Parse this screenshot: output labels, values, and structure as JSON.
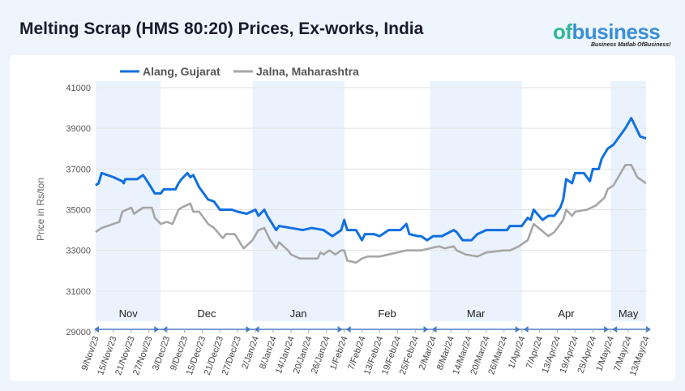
{
  "title": "Melting Scrap (HMS 80:20) Prices, Ex-works, India",
  "logo": {
    "brand_a": "of",
    "brand_b": "business",
    "tagline": "Business Matlab OfBusiness!"
  },
  "colors": {
    "alang": "#1170e0",
    "jalna": "#a6a6a6",
    "band": "#eaf3fd"
  },
  "chart_data": {
    "type": "line",
    "title": "Melting Scrap (HMS 80:20) Prices, Ex-works, India",
    "xlabel": "",
    "ylabel": "Price in Rs/ton",
    "ylim": [
      29000,
      41000
    ],
    "yticks": [
      "29000",
      "31000",
      "33000",
      "35000",
      "37000",
      "39000",
      "41000"
    ],
    "x_unit": "days since 9/Nov/23",
    "xlim": [
      0,
      186
    ],
    "xticks": [
      "9/Nov/23",
      "15/Nov/23",
      "21/Nov/23",
      "27/Nov/23",
      "3/Dec/23",
      "9/Dec/23",
      "15/Dec/23",
      "21/Dec/23",
      "27/Dec/23",
      "2/Jan/24",
      "8/Jan/24",
      "14/Jan/24",
      "20/Jan/24",
      "26/Jan/24",
      "1/Feb/24",
      "7/Feb/24",
      "13/Feb/24",
      "19/Feb/24",
      "25/Feb/24",
      "2/Mar/24",
      "8/Mar/24",
      "14/Mar/24",
      "20/Mar/24",
      "26/Mar/24",
      "1/Apr/24",
      "7/Apr/24",
      "13/Apr/24",
      "19/Apr/24",
      "25/Apr/24",
      "1/May/24",
      "7/May/24",
      "13/May/24"
    ],
    "months": [
      {
        "label": "Nov",
        "start": 0,
        "end": 22,
        "shaded": true
      },
      {
        "label": "Dec",
        "start": 22,
        "end": 53,
        "shaded": false
      },
      {
        "label": "Jan",
        "start": 53,
        "end": 84,
        "shaded": true
      },
      {
        "label": "Feb",
        "start": 84,
        "end": 113,
        "shaded": false
      },
      {
        "label": "Mar",
        "start": 113,
        "end": 144,
        "shaded": true
      },
      {
        "label": "Apr",
        "start": 144,
        "end": 174,
        "shaded": false
      },
      {
        "label": "May",
        "start": 174,
        "end": 186,
        "shaded": true
      }
    ],
    "legend": "top-left",
    "series": [
      {
        "name": "Alang, Gujarat",
        "points": [
          [
            0,
            36200
          ],
          [
            1,
            36300
          ],
          [
            2,
            36800
          ],
          [
            6,
            36600
          ],
          [
            9,
            36400
          ],
          [
            9.5,
            36300
          ],
          [
            10,
            36500
          ],
          [
            14,
            36500
          ],
          [
            16,
            36700
          ],
          [
            17,
            36500
          ],
          [
            20,
            35800
          ],
          [
            22,
            35800
          ],
          [
            23,
            36000
          ],
          [
            27,
            36000
          ],
          [
            28,
            36300
          ],
          [
            29,
            36500
          ],
          [
            31,
            36800
          ],
          [
            32,
            36600
          ],
          [
            33,
            36700
          ],
          [
            35,
            36100
          ],
          [
            38,
            35500
          ],
          [
            40,
            35400
          ],
          [
            42,
            35000
          ],
          [
            46,
            35000
          ],
          [
            48,
            34900
          ],
          [
            51,
            34800
          ],
          [
            54,
            35000
          ],
          [
            55,
            34700
          ],
          [
            57,
            35000
          ],
          [
            58,
            34700
          ],
          [
            61,
            34000
          ],
          [
            62,
            34200
          ],
          [
            66,
            34100
          ],
          [
            70,
            34000
          ],
          [
            73,
            34100
          ],
          [
            77,
            34000
          ],
          [
            79,
            33800
          ],
          [
            80,
            33700
          ],
          [
            83,
            34000
          ],
          [
            84,
            34500
          ],
          [
            85,
            34000
          ],
          [
            88,
            34000
          ],
          [
            90,
            33500
          ],
          [
            91,
            33800
          ],
          [
            94,
            33800
          ],
          [
            96,
            33700
          ],
          [
            99,
            34000
          ],
          [
            103,
            34000
          ],
          [
            105,
            34300
          ],
          [
            106,
            33800
          ],
          [
            109,
            33700
          ],
          [
            110,
            33700
          ],
          [
            112,
            33500
          ],
          [
            114,
            33700
          ],
          [
            117,
            33700
          ],
          [
            121,
            34000
          ],
          [
            122,
            33900
          ],
          [
            124,
            33500
          ],
          [
            127,
            33500
          ],
          [
            129,
            33800
          ],
          [
            132,
            34000
          ],
          [
            139,
            34000
          ],
          [
            140,
            34200
          ],
          [
            144,
            34200
          ],
          [
            146,
            34600
          ],
          [
            147,
            34500
          ],
          [
            148,
            35000
          ],
          [
            151,
            34500
          ],
          [
            153,
            34700
          ],
          [
            155,
            34700
          ],
          [
            157,
            35100
          ],
          [
            158,
            35500
          ],
          [
            159,
            36500
          ],
          [
            161,
            36300
          ],
          [
            162,
            36800
          ],
          [
            165,
            36800
          ],
          [
            166,
            36600
          ],
          [
            167,
            36400
          ],
          [
            168,
            37000
          ],
          [
            170,
            37000
          ],
          [
            171,
            37500
          ],
          [
            173,
            38000
          ],
          [
            175,
            38200
          ],
          [
            176,
            38400
          ],
          [
            177,
            38600
          ],
          [
            179,
            39000
          ],
          [
            181,
            39500
          ],
          [
            182,
            39200
          ],
          [
            184,
            38600
          ],
          [
            186,
            38500
          ]
        ]
      },
      {
        "name": "Jalna, Maharashtra",
        "points": [
          [
            0,
            33900
          ],
          [
            2,
            34100
          ],
          [
            6,
            34300
          ],
          [
            8,
            34400
          ],
          [
            9,
            34900
          ],
          [
            12,
            35100
          ],
          [
            13,
            34800
          ],
          [
            14,
            34900
          ],
          [
            16,
            35100
          ],
          [
            19,
            35100
          ],
          [
            20,
            34600
          ],
          [
            22,
            34300
          ],
          [
            24,
            34400
          ],
          [
            26,
            34300
          ],
          [
            28,
            35000
          ],
          [
            29,
            35100
          ],
          [
            32,
            35300
          ],
          [
            33,
            34900
          ],
          [
            35,
            34900
          ],
          [
            38,
            34300
          ],
          [
            40,
            34100
          ],
          [
            43,
            33600
          ],
          [
            44,
            33800
          ],
          [
            47,
            33800
          ],
          [
            50,
            33100
          ],
          [
            53,
            33500
          ],
          [
            55,
            34000
          ],
          [
            57,
            34100
          ],
          [
            59,
            33500
          ],
          [
            61,
            33100
          ],
          [
            62,
            33400
          ],
          [
            65,
            33000
          ],
          [
            66,
            32800
          ],
          [
            69,
            32600
          ],
          [
            75,
            32600
          ],
          [
            76,
            32900
          ],
          [
            77,
            32800
          ],
          [
            79,
            33000
          ],
          [
            81,
            32800
          ],
          [
            83,
            33000
          ],
          [
            84,
            33000
          ],
          [
            85,
            32500
          ],
          [
            88,
            32400
          ],
          [
            90,
            32600
          ],
          [
            92,
            32700
          ],
          [
            96,
            32700
          ],
          [
            99,
            32800
          ],
          [
            102,
            32900
          ],
          [
            105,
            33000
          ],
          [
            110,
            33000
          ],
          [
            116,
            33200
          ],
          [
            118,
            33100
          ],
          [
            121,
            33200
          ],
          [
            122,
            33000
          ],
          [
            125,
            32800
          ],
          [
            129,
            32700
          ],
          [
            132,
            32900
          ],
          [
            138,
            33000
          ],
          [
            140,
            33000
          ],
          [
            143,
            33200
          ],
          [
            146,
            33500
          ],
          [
            148,
            34300
          ],
          [
            153,
            33700
          ],
          [
            155,
            33900
          ],
          [
            158,
            34500
          ],
          [
            159,
            35000
          ],
          [
            161,
            34700
          ],
          [
            162,
            34900
          ],
          [
            166,
            35000
          ],
          [
            169,
            35200
          ],
          [
            172,
            35600
          ],
          [
            173,
            36000
          ],
          [
            175,
            36200
          ],
          [
            179,
            37200
          ],
          [
            181,
            37200
          ],
          [
            183,
            36600
          ],
          [
            186,
            36300
          ]
        ]
      }
    ]
  }
}
